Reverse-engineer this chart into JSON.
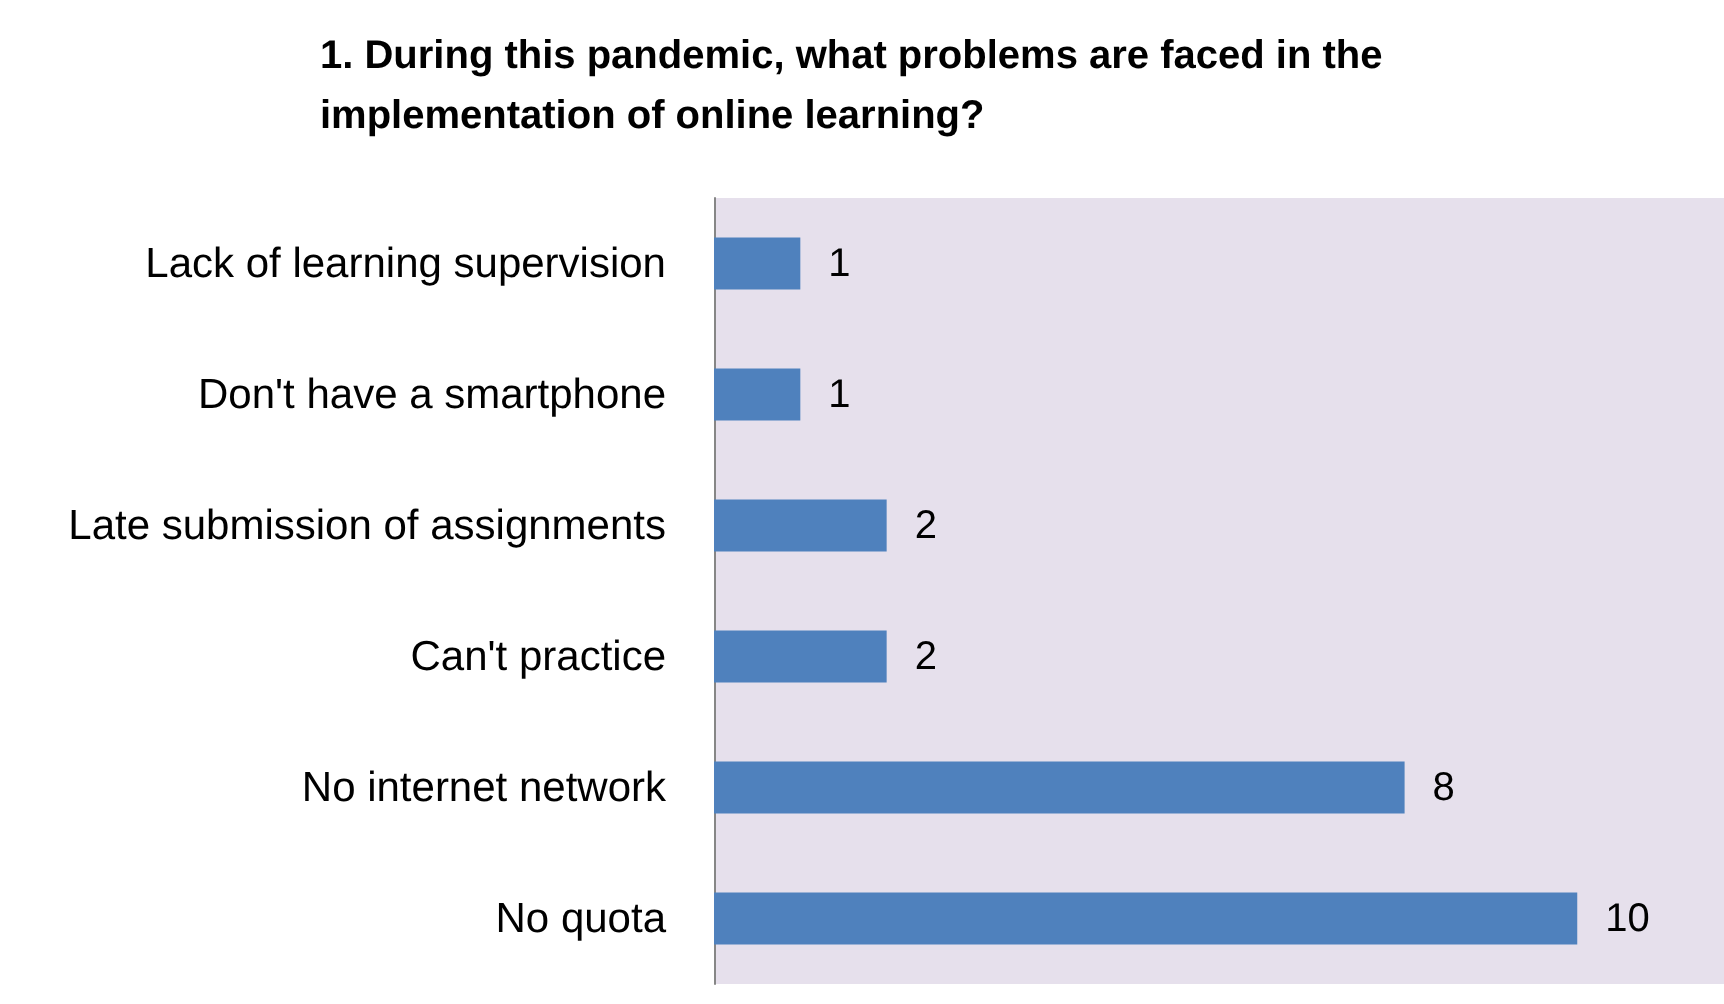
{
  "chart_data": {
    "type": "bar",
    "orientation": "horizontal",
    "title": "1. During this pandemic, what problems are faced in the\nimplementation of online learning?",
    "categories": [
      "Lack of learning supervision",
      "Don't have a smartphone",
      "Late submission of assignments",
      "Can't practice",
      "No internet network",
      "No quota"
    ],
    "values": [
      1,
      1,
      2,
      2,
      8,
      10
    ],
    "color": "#4f81bd",
    "data_labels": true,
    "tick_labels": "y"
  }
}
